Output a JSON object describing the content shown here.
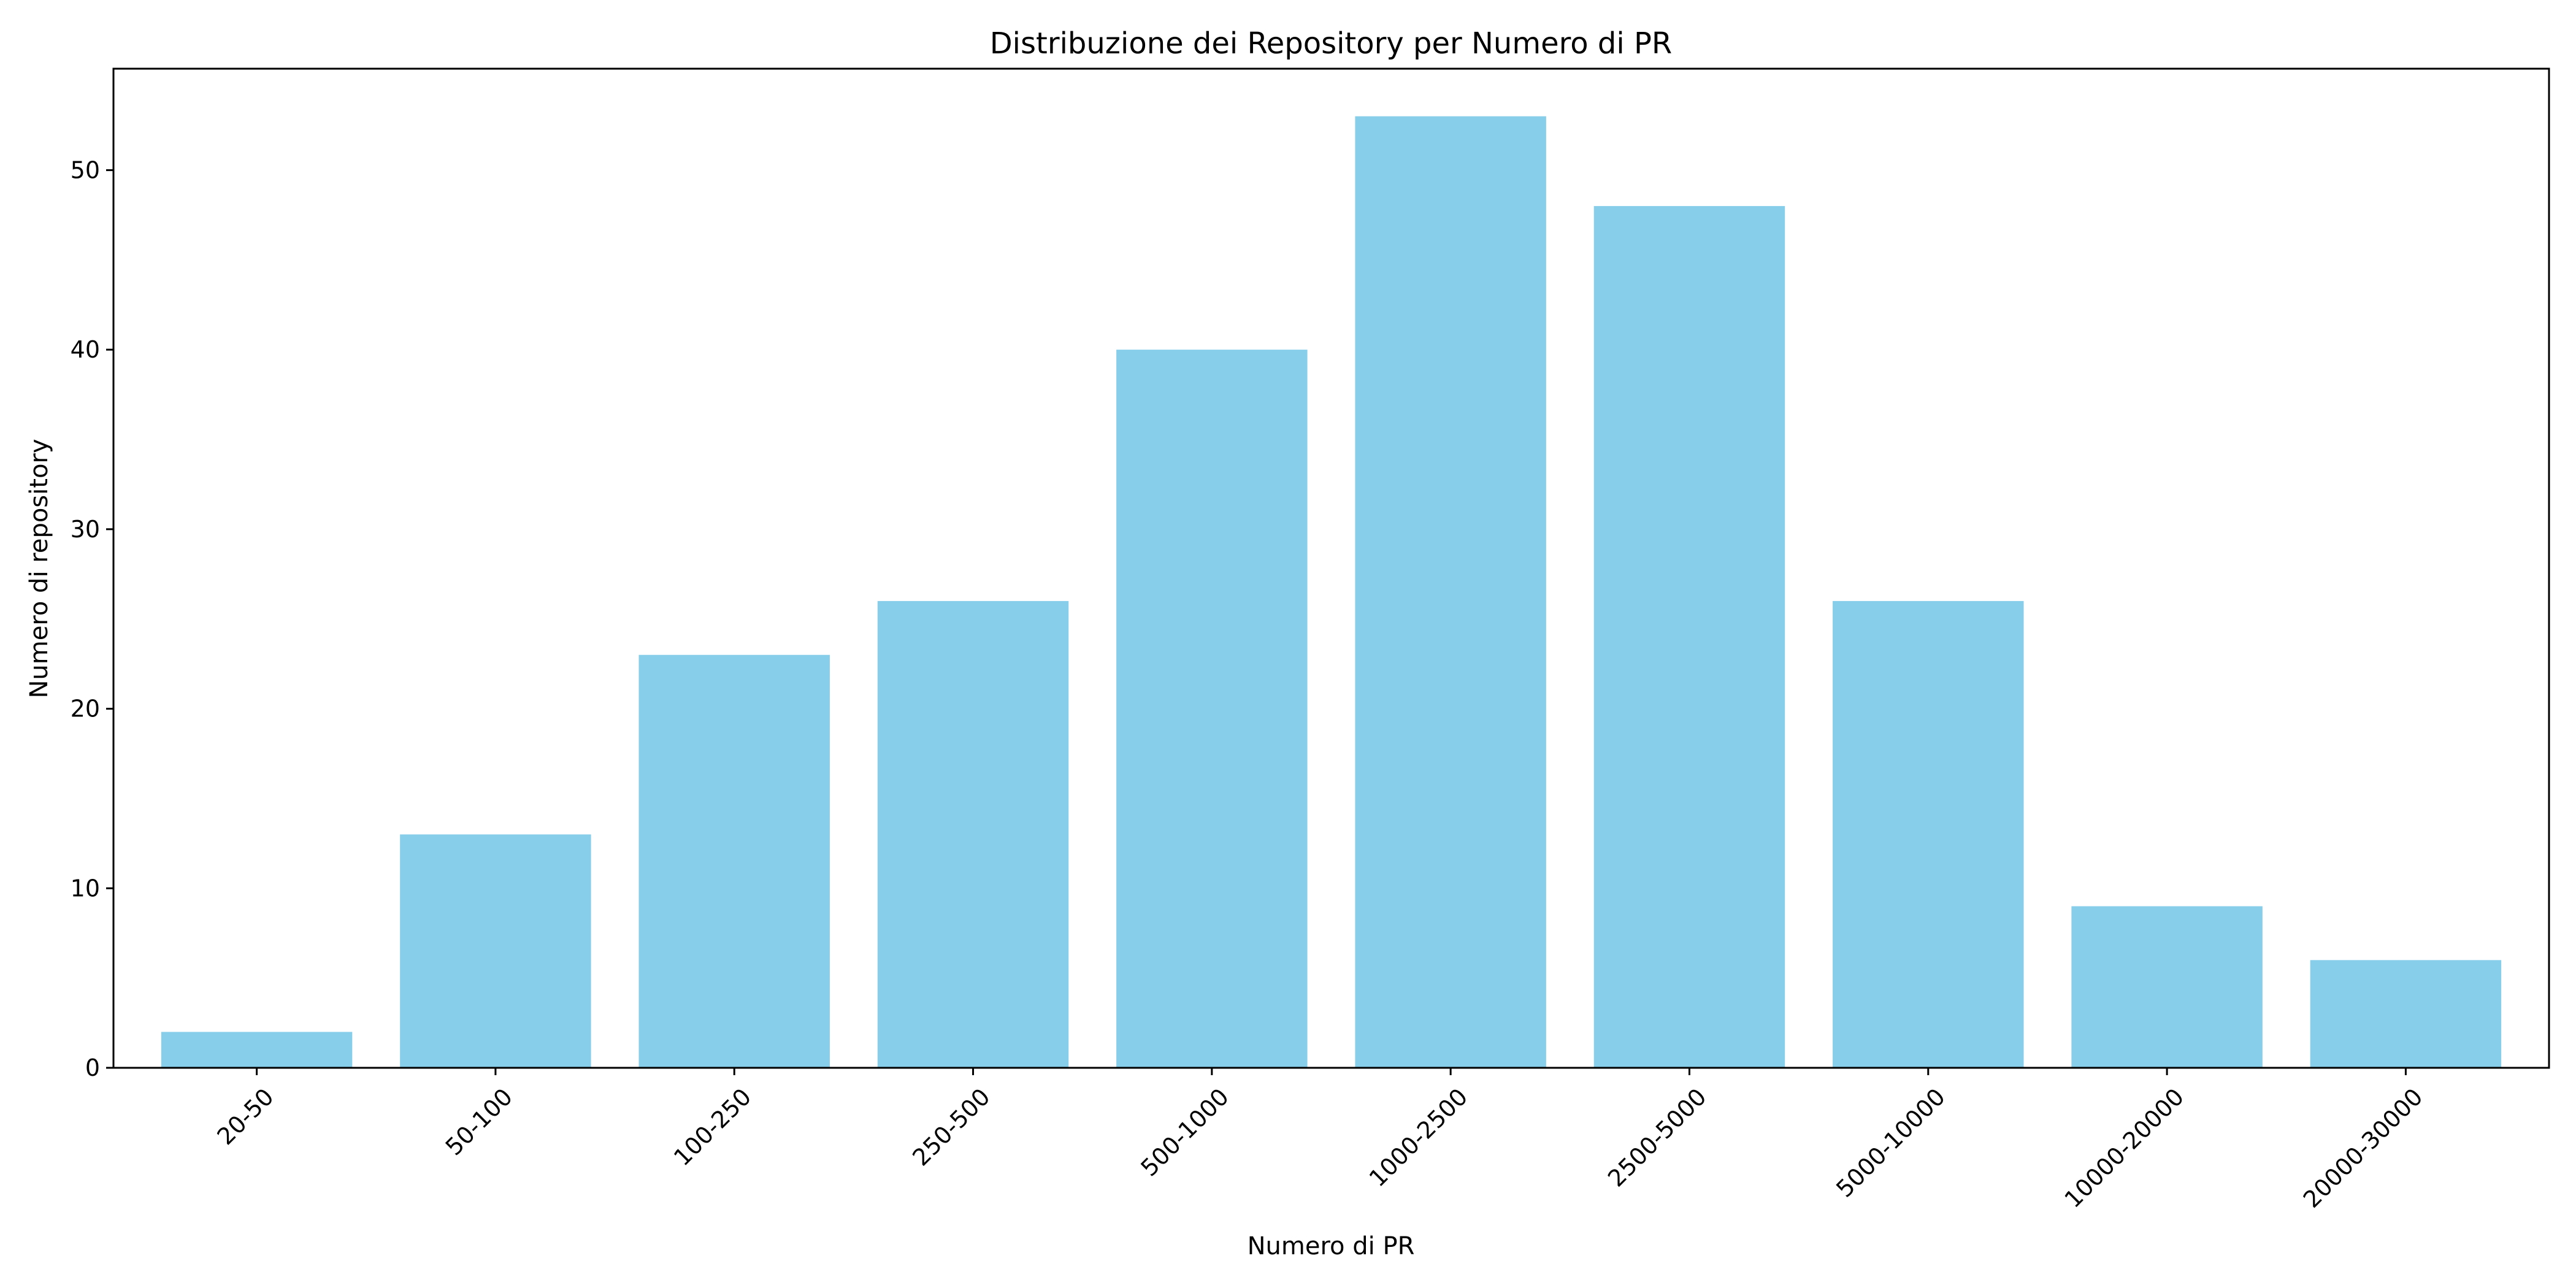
{
  "chart_data": {
    "type": "bar",
    "title": "Distribuzione dei Repository per Numero di PR",
    "xlabel": "Numero di PR",
    "ylabel": "Numero di repository",
    "categories": [
      "20-50",
      "50-100",
      "100-250",
      "250-500",
      "500-1000",
      "1000-2500",
      "2500-5000",
      "5000-10000",
      "10000-20000",
      "20000-30000"
    ],
    "values": [
      2,
      13,
      23,
      26,
      40,
      53,
      48,
      26,
      9,
      6
    ],
    "ylim": [
      0,
      55.65
    ],
    "yticks": [
      0,
      10,
      20,
      30,
      40,
      50
    ],
    "grid": false,
    "legend": "none",
    "bar_color": "#87ceeb",
    "axis_color": "#000000"
  }
}
